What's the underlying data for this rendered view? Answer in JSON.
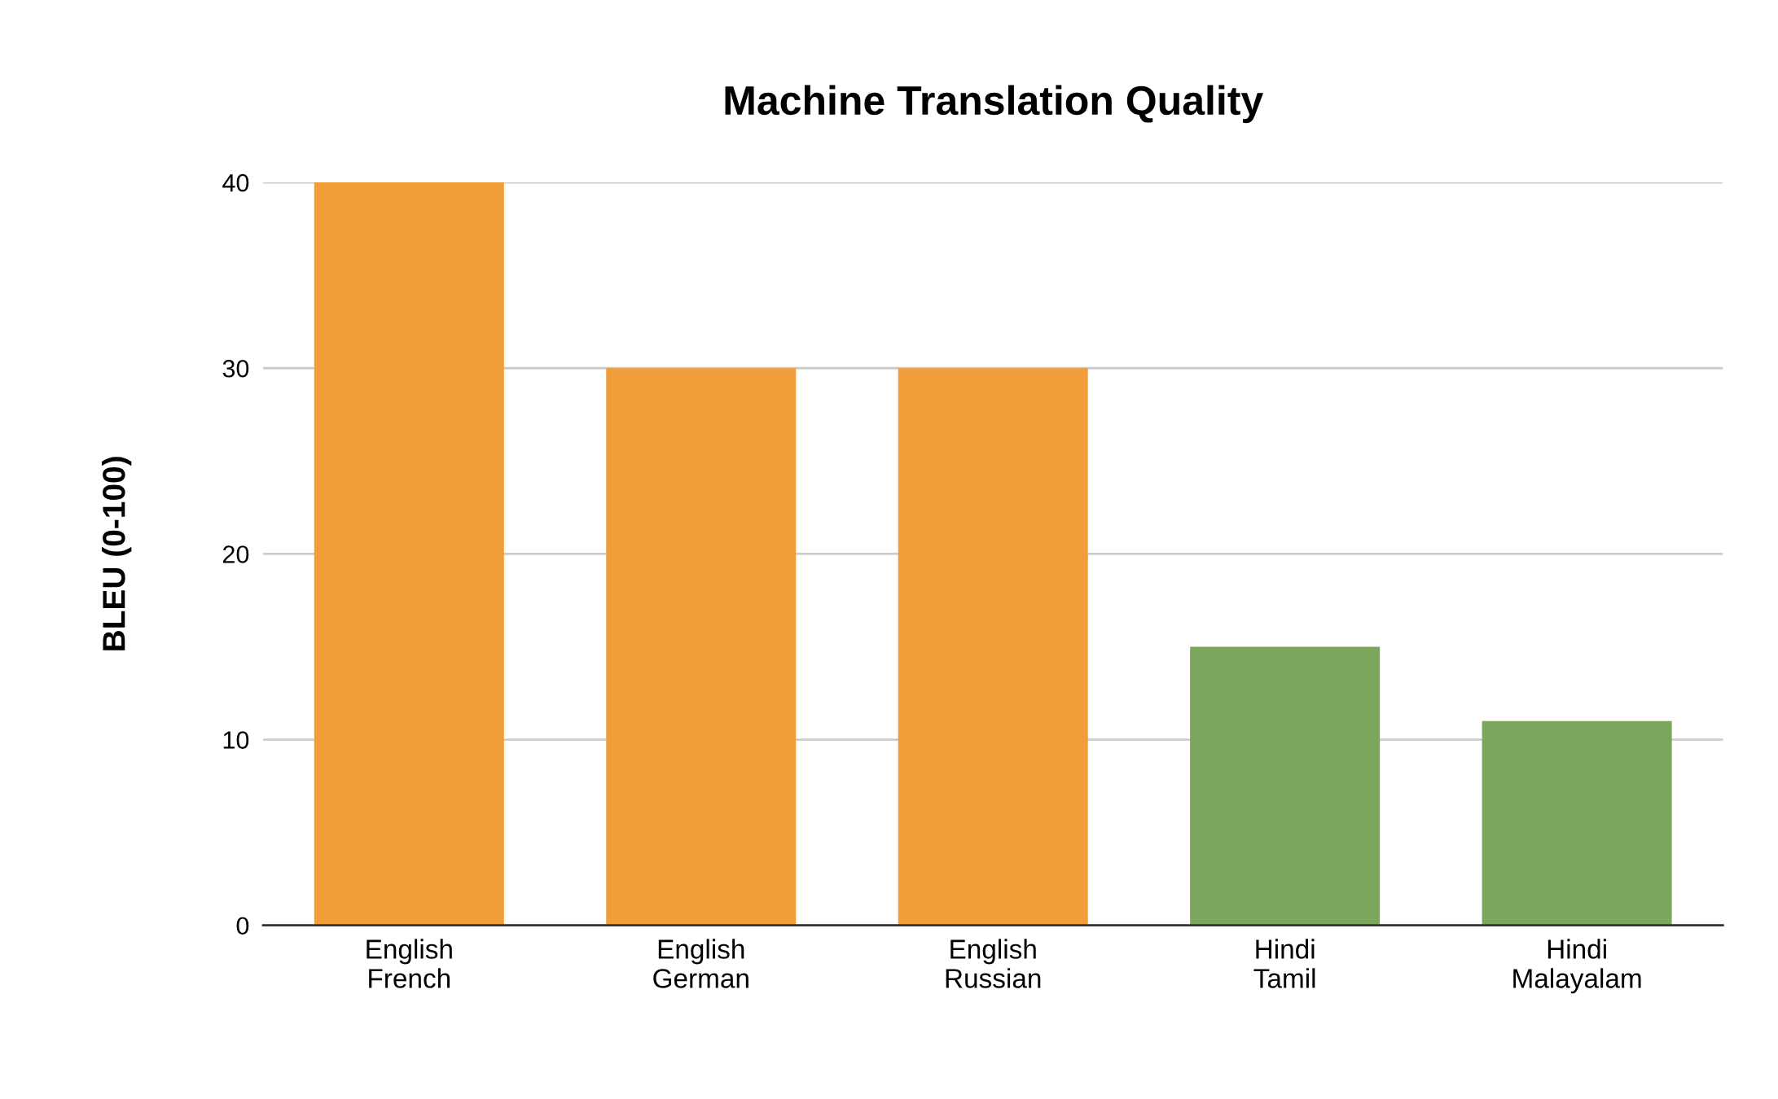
{
  "chart_data": {
    "type": "bar",
    "title": "Machine Translation Quality",
    "ylabel": "BLEU (0-100)",
    "categories": [
      "English\nFrench",
      "English\nGerman",
      "English\nRussian",
      "Hindi\nTamil",
      "Hindi\nMalayalam"
    ],
    "values": [
      40,
      30,
      30,
      15,
      11
    ],
    "colors": [
      "#f09d3a",
      "#f09d3a",
      "#f09d3a",
      "#7aa75c",
      "#7aa75c"
    ],
    "ylim": [
      0,
      40
    ],
    "yticks": [
      0,
      10,
      20,
      30,
      40
    ],
    "grid": "y"
  }
}
